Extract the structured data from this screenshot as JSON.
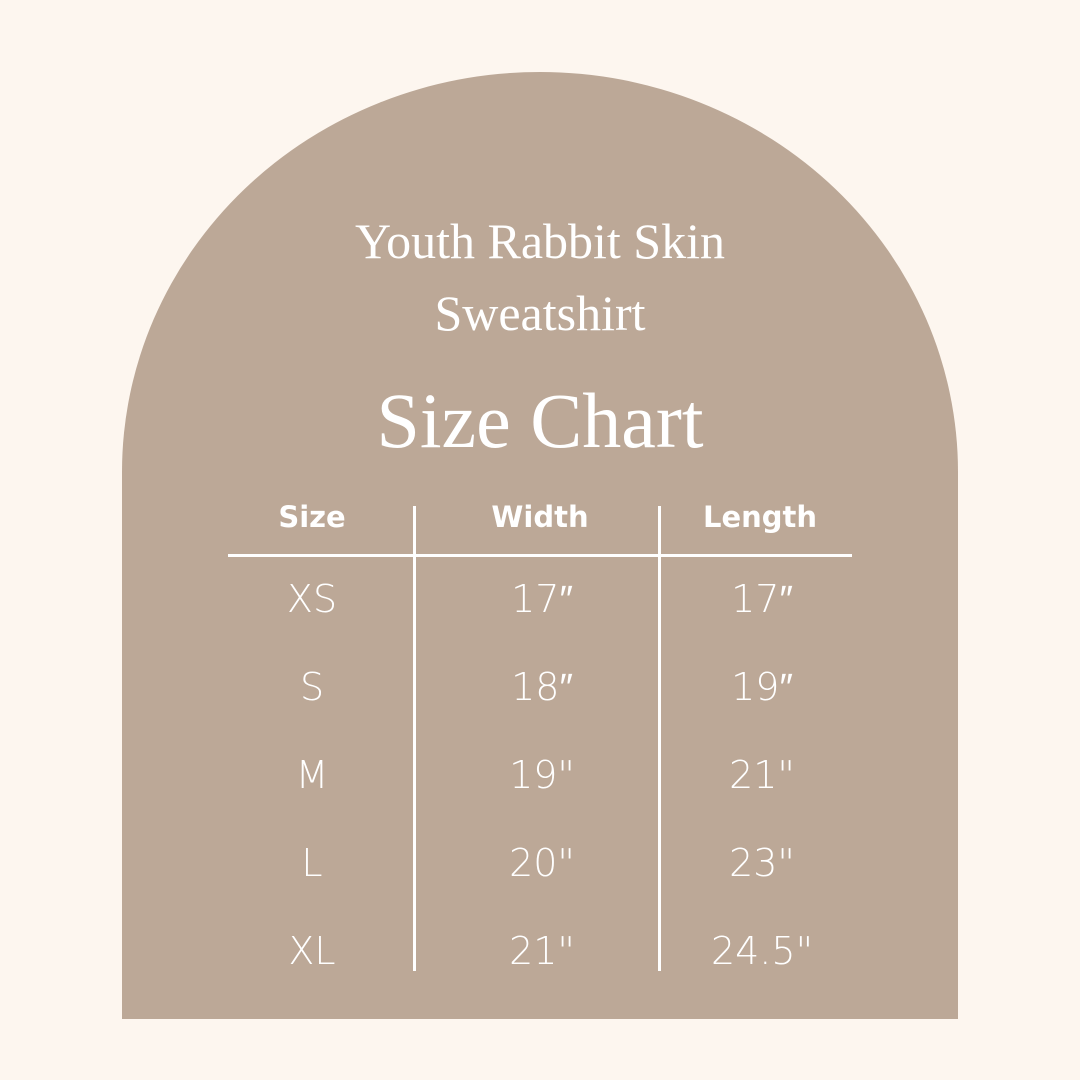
{
  "title": {
    "line1": "Youth Rabbit Skin",
    "line2": "Sweatshirt",
    "line3": "Size Chart"
  },
  "table": {
    "headers": [
      "Size",
      "Width",
      "Length"
    ],
    "rows": [
      [
        "XS",
        "17″",
        "17″"
      ],
      [
        "S",
        "18″",
        "19″"
      ],
      [
        "M",
        "19\"",
        "21\""
      ],
      [
        "L",
        "20\"",
        "23\""
      ],
      [
        "XL",
        "21\"",
        "24.5\""
      ]
    ]
  },
  "colors": {
    "background": "#fdf6ef",
    "arch": "#bca897",
    "text": "#ffffff"
  }
}
